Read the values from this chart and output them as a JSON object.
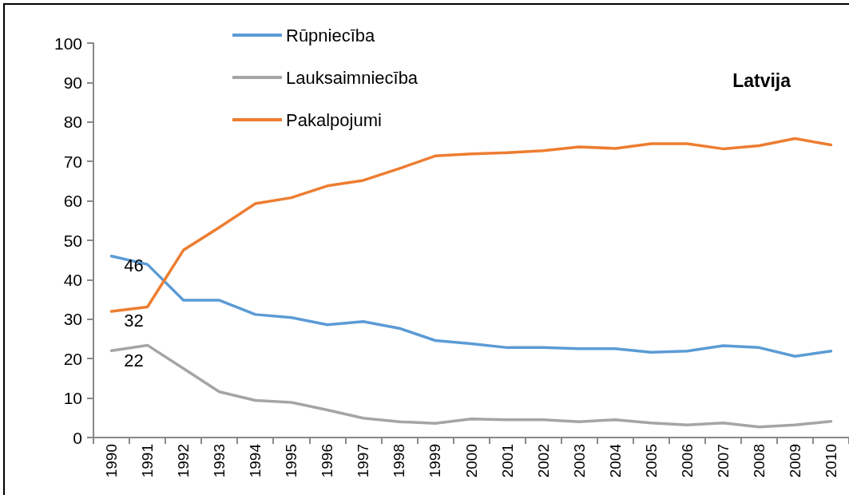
{
  "chart_data": {
    "type": "line",
    "title": "Latvija",
    "categories": [
      "1990",
      "1991",
      "1992",
      "1993",
      "1994",
      "1995",
      "1996",
      "1997",
      "1998",
      "1999",
      "2000",
      "2001",
      "2002",
      "2003",
      "2004",
      "2005",
      "2006",
      "2007",
      "2008",
      "2009",
      "2010"
    ],
    "series": [
      {
        "name": "Rūpniecība",
        "color": "#5b9bd5",
        "values": [
          46,
          43.9,
          34.8,
          34.8,
          31.2,
          30.4,
          28.6,
          29.4,
          27.7,
          24.6,
          23.8,
          22.8,
          22.8,
          22.5,
          22.5,
          21.6,
          21.9,
          23.3,
          22.8,
          20.6,
          21.9
        ],
        "value_labels": [
          "46",
          null,
          null,
          null,
          null,
          null,
          null,
          null,
          null,
          null,
          null,
          null,
          null,
          null,
          null,
          null,
          null,
          null,
          null,
          null,
          null
        ]
      },
      {
        "name": "Lauksaimniecība",
        "color": "#a5a5a5",
        "values": [
          22,
          23.4,
          17.5,
          11.6,
          9.4,
          8.9,
          7.0,
          4.9,
          4.0,
          3.6,
          4.7,
          4.5,
          4.5,
          4.0,
          4.5,
          3.7,
          3.2,
          3.7,
          2.7,
          3.2,
          4.1
        ],
        "value_labels": [
          "22",
          null,
          null,
          null,
          null,
          null,
          null,
          null,
          null,
          null,
          null,
          null,
          null,
          null,
          null,
          null,
          null,
          null,
          null,
          null,
          null
        ]
      },
      {
        "name": "Pakalpojumi",
        "color": "#ed7d31",
        "values": [
          32,
          33.1,
          47.5,
          53.3,
          59.3,
          60.8,
          63.8,
          65.2,
          68.2,
          71.4,
          71.9,
          72.2,
          72.7,
          73.7,
          73.3,
          74.5,
          74.5,
          73.2,
          74.0,
          75.8,
          74.2
        ],
        "value_labels": [
          "32",
          null,
          null,
          null,
          null,
          null,
          null,
          null,
          null,
          null,
          null,
          null,
          null,
          null,
          null,
          null,
          null,
          null,
          null,
          null,
          null
        ]
      }
    ],
    "ylim": [
      0,
      100
    ],
    "yticks": [
      0,
      10,
      20,
      30,
      40,
      50,
      60,
      70,
      80,
      90,
      100
    ],
    "grid": false,
    "legend": "top left",
    "marker": "none",
    "line_style": "solid"
  }
}
